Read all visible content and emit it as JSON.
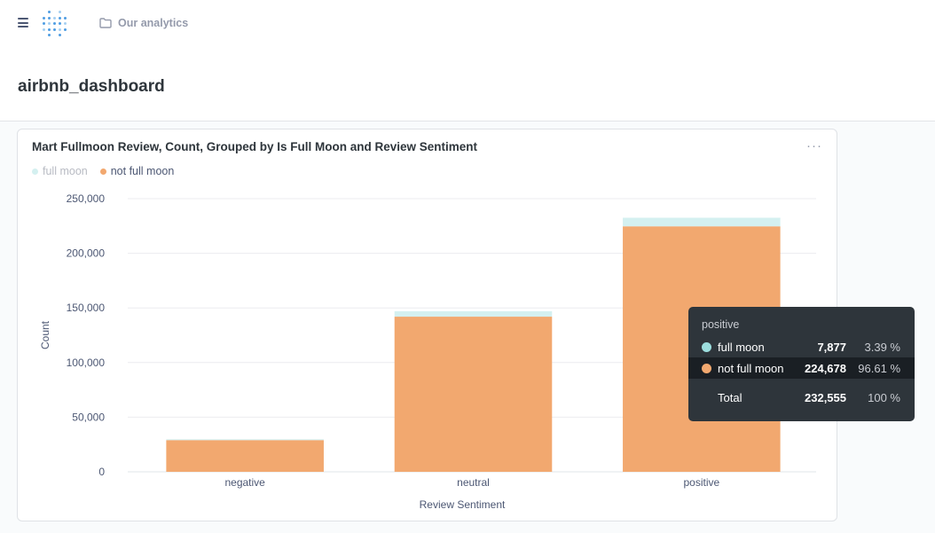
{
  "header": {
    "breadcrumb": "Our analytics",
    "icons": [
      "hamburger-menu-icon",
      "metabase-logo",
      "folder-icon"
    ]
  },
  "page_title": "airbnb_dashboard",
  "card": {
    "title": "Mart Fullmoon Review, Count, Grouped by Is Full Moon and Review Sentiment",
    "menu": "···",
    "colors": {
      "full_moon": "#d4f0f0",
      "not_full_moon": "#f2a86f"
    }
  },
  "chart_data": {
    "type": "bar",
    "stacked": true,
    "title": "Mart Fullmoon Review, Count, Grouped by Is Full Moon and Review Sentiment",
    "categories": [
      "negative",
      "neutral",
      "positive"
    ],
    "series": [
      {
        "name": "full moon",
        "values": [
          800,
          5000,
          7877
        ],
        "color": "#d4f0f0"
      },
      {
        "name": "not full moon",
        "values": [
          29000,
          142000,
          224678
        ],
        "color": "#f2a86f"
      }
    ],
    "xlabel": "Review Sentiment",
    "ylabel": "Count",
    "ylim": [
      0,
      250000
    ],
    "yticks": [
      "0",
      "50,000",
      "100,000",
      "150,000",
      "200,000",
      "250,000"
    ],
    "ytick_values": [
      0,
      50000,
      100000,
      150000,
      200000,
      250000
    ],
    "grid": true,
    "legend_position": "top-left"
  },
  "tooltip": {
    "category": "positive",
    "rows": [
      {
        "name": "full moon",
        "value": "7,877",
        "percent": "3.39 %",
        "color": "#9cdede"
      },
      {
        "name": "not full moon",
        "value": "224,678",
        "percent": "96.61 %",
        "color": "#f2a86f"
      }
    ],
    "total": {
      "name": "Total",
      "value": "232,555",
      "percent": "100 %"
    }
  }
}
